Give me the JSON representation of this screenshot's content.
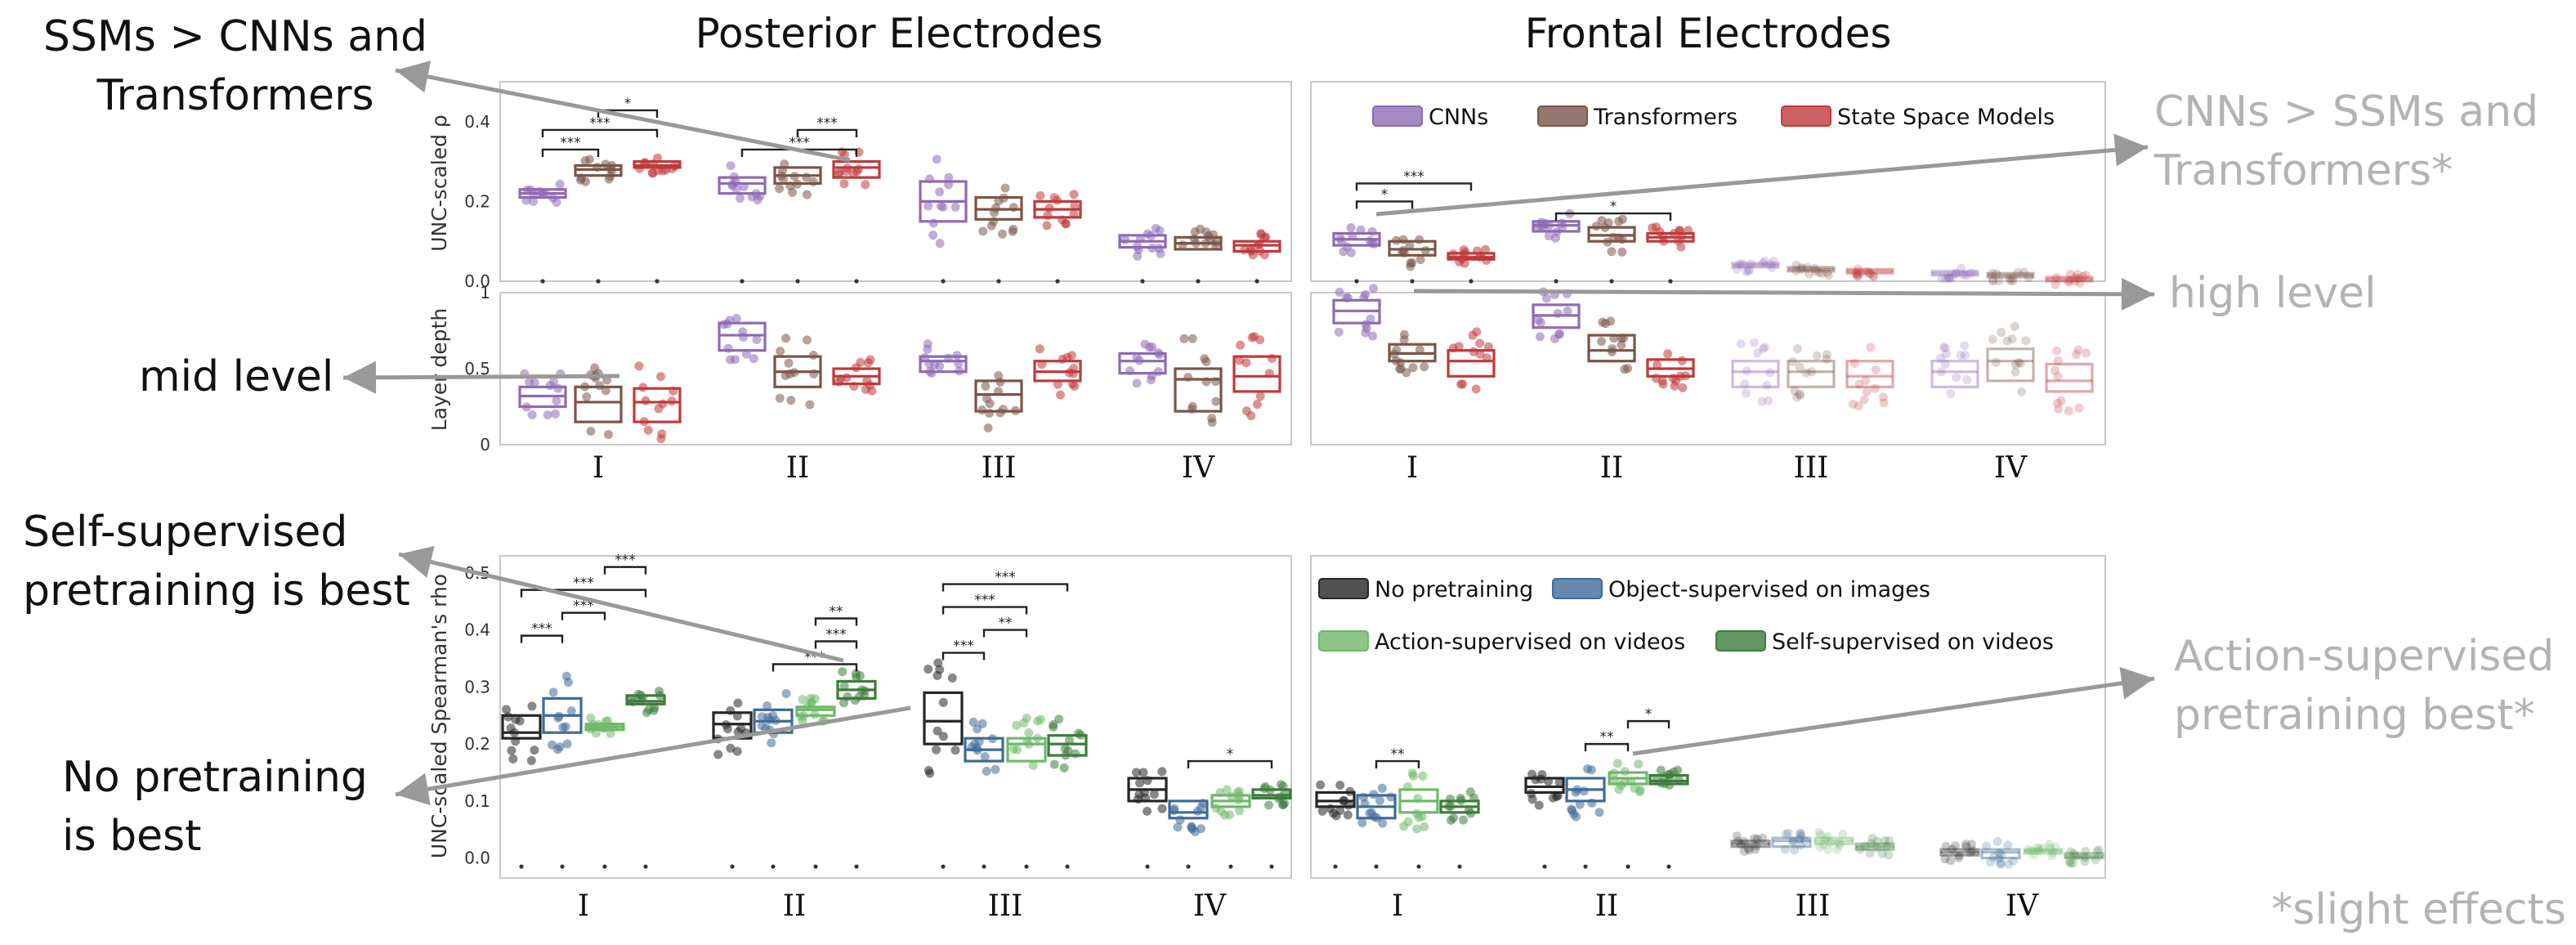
{
  "chart_data": [
    {
      "type": "box",
      "panel": "architecture",
      "titles": {
        "posterior": "Posterior Electrodes",
        "frontal": "Frontal Electrodes"
      },
      "ylabel_top": "UNC-scaled ρ",
      "ylabel_bottom": "Layer depth",
      "categories": [
        "I",
        "II",
        "III",
        "IV"
      ],
      "yticks_top": [
        "0.0",
        "0.2",
        "0.4"
      ],
      "ylim_top": [
        0,
        0.5
      ],
      "yticks_bottom": [
        "0",
        "0.5",
        "1"
      ],
      "ylim_bottom": [
        0,
        1
      ],
      "legend": [
        "CNNs",
        "Transformers",
        "State Space Models"
      ],
      "colors": [
        "#8e6ab5",
        "#7a5548",
        "#c0393b"
      ],
      "series": [
        {
          "name": "CNNs",
          "posterior_rho": [
            [
              0.21,
              0.22,
              0.23
            ],
            [
              0.22,
              0.245,
              0.26
            ],
            [
              0.15,
              0.2,
              0.25
            ],
            [
              0.085,
              0.1,
              0.115
            ]
          ],
          "frontal_rho": [
            [
              0.09,
              0.105,
              0.12
            ],
            [
              0.125,
              0.14,
              0.15
            ],
            [
              0.035,
              0.04,
              0.045
            ],
            [
              0.015,
              0.02,
              0.025
            ]
          ],
          "posterior_depth": [
            [
              0.25,
              0.32,
              0.38
            ],
            [
              0.62,
              0.72,
              0.8
            ],
            [
              0.48,
              0.55,
              0.58
            ],
            [
              0.47,
              0.55,
              0.6
            ]
          ],
          "frontal_depth": [
            [
              0.8,
              0.88,
              0.95
            ],
            [
              0.77,
              0.85,
              0.92
            ],
            [
              0.38,
              0.48,
              0.55
            ],
            [
              0.38,
              0.48,
              0.55
            ]
          ]
        },
        {
          "name": "Transformers",
          "posterior_rho": [
            [
              0.265,
              0.28,
              0.29
            ],
            [
              0.245,
              0.265,
              0.285
            ],
            [
              0.155,
              0.18,
              0.21
            ],
            [
              0.08,
              0.095,
              0.11
            ]
          ],
          "frontal_rho": [
            [
              0.065,
              0.08,
              0.1
            ],
            [
              0.1,
              0.115,
              0.135
            ],
            [
              0.025,
              0.03,
              0.035
            ],
            [
              0.01,
              0.015,
              0.02
            ]
          ],
          "posterior_depth": [
            [
              0.15,
              0.28,
              0.38
            ],
            [
              0.38,
              0.48,
              0.58
            ],
            [
              0.22,
              0.33,
              0.42
            ],
            [
              0.22,
              0.43,
              0.5
            ]
          ],
          "frontal_depth": [
            [
              0.55,
              0.6,
              0.66
            ],
            [
              0.55,
              0.62,
              0.72
            ],
            [
              0.38,
              0.48,
              0.55
            ],
            [
              0.42,
              0.55,
              0.63
            ]
          ]
        },
        {
          "name": "State Space Models",
          "posterior_rho": [
            [
              0.285,
              0.29,
              0.3
            ],
            [
              0.26,
              0.285,
              0.3
            ],
            [
              0.16,
              0.18,
              0.2
            ],
            [
              0.075,
              0.09,
              0.1
            ]
          ],
          "frontal_rho": [
            [
              0.055,
              0.06,
              0.07
            ],
            [
              0.1,
              0.11,
              0.12
            ],
            [
              0.02,
              0.025,
              0.03
            ],
            [
              0.0,
              0.005,
              0.01
            ]
          ],
          "posterior_depth": [
            [
              0.15,
              0.28,
              0.37
            ],
            [
              0.4,
              0.45,
              0.5
            ],
            [
              0.42,
              0.48,
              0.55
            ],
            [
              0.35,
              0.45,
              0.58
            ]
          ],
          "frontal_depth": [
            [
              0.45,
              0.55,
              0.62
            ],
            [
              0.45,
              0.5,
              0.56
            ],
            [
              0.38,
              0.45,
              0.55
            ],
            [
              0.35,
              0.42,
              0.53
            ]
          ]
        }
      ],
      "significance_posterior": [
        {
          "region": "I",
          "pairs": [
            [
              "CNNs",
              "Transformers",
              "***"
            ],
            [
              "CNNs",
              "State Space Models",
              "***"
            ],
            [
              "Transformers",
              "State Space Models",
              "*"
            ]
          ]
        },
        {
          "region": "II",
          "pairs": [
            [
              "CNNs",
              "State Space Models",
              "***"
            ],
            [
              "Transformers",
              "State Space Models",
              "***"
            ]
          ]
        }
      ],
      "significance_frontal": [
        {
          "region": "I",
          "pairs": [
            [
              "CNNs",
              "Transformers",
              "*"
            ],
            [
              "CNNs",
              "State Space Models",
              "***"
            ]
          ]
        },
        {
          "region": "II",
          "pairs": [
            [
              "CNNs",
              "State Space Models",
              "*"
            ]
          ]
        }
      ]
    },
    {
      "type": "box",
      "panel": "pretraining",
      "ylabel": "UNC-scaled Spearman's rho",
      "categories": [
        "I",
        "II",
        "III",
        "IV"
      ],
      "yticks": [
        "0.0",
        "0.1",
        "0.2",
        "0.3",
        "0.4",
        "0.5"
      ],
      "ylim": [
        0,
        0.5
      ],
      "legend": [
        "No pretraining",
        "Object-supervised on images",
        "Action-supervised on videos",
        "Self-supervised on videos"
      ],
      "colors": [
        "#262626",
        "#3f6a97",
        "#6fb86a",
        "#3d7c3d"
      ],
      "series": [
        {
          "name": "No pretraining",
          "posterior": [
            [
              0.21,
              0.22,
              0.25
            ],
            [
              0.21,
              0.235,
              0.255
            ],
            [
              0.2,
              0.24,
              0.29
            ],
            [
              0.1,
              0.12,
              0.14
            ]
          ],
          "frontal": [
            [
              0.09,
              0.1,
              0.115
            ],
            [
              0.115,
              0.125,
              0.14
            ],
            [
              0.02,
              0.025,
              0.03
            ],
            [
              0.005,
              0.01,
              0.015
            ]
          ]
        },
        {
          "name": "Object-supervised on images",
          "posterior": [
            [
              0.22,
              0.25,
              0.28
            ],
            [
              0.22,
              0.24,
              0.26
            ],
            [
              0.17,
              0.19,
              0.21
            ],
            [
              0.07,
              0.08,
              0.1
            ]
          ],
          "frontal": [
            [
              0.07,
              0.09,
              0.11
            ],
            [
              0.1,
              0.12,
              0.14
            ],
            [
              0.02,
              0.03,
              0.035
            ],
            [
              0.0,
              0.01,
              0.015
            ]
          ]
        },
        {
          "name": "Action-supervised on videos",
          "posterior": [
            [
              0.225,
              0.23,
              0.235
            ],
            [
              0.25,
              0.26,
              0.265
            ],
            [
              0.17,
              0.2,
              0.21
            ],
            [
              0.09,
              0.1,
              0.11
            ]
          ],
          "frontal": [
            [
              0.08,
              0.1,
              0.12
            ],
            [
              0.13,
              0.14,
              0.15
            ],
            [
              0.025,
              0.03,
              0.035
            ],
            [
              0.008,
              0.012,
              0.015
            ]
          ]
        },
        {
          "name": "Self-supervised on videos",
          "posterior": [
            [
              0.27,
              0.275,
              0.285
            ],
            [
              0.28,
              0.295,
              0.31
            ],
            [
              0.18,
              0.2,
              0.215
            ],
            [
              0.105,
              0.11,
              0.12
            ]
          ],
          "frontal": [
            [
              0.08,
              0.09,
              0.1
            ],
            [
              0.13,
              0.135,
              0.145
            ],
            [
              0.015,
              0.02,
              0.025
            ],
            [
              0.0,
              0.003,
              0.008
            ]
          ]
        }
      ],
      "significance_posterior": [
        {
          "region": "I",
          "pairs": [
            [
              "No pretraining",
              "Object-supervised on images",
              "***"
            ],
            [
              "Object-supervised on images",
              "Action-supervised on videos",
              "***"
            ],
            [
              "No pretraining",
              "Self-supervised on videos",
              "***"
            ],
            [
              "Action-supervised on videos",
              "Self-supervised on videos",
              "***"
            ]
          ]
        },
        {
          "region": "II",
          "pairs": [
            [
              "Object-supervised on images",
              "Self-supervised on videos",
              "***"
            ],
            [
              "Action-supervised on videos",
              "Self-supervised on videos",
              "***"
            ],
            [
              "Action-supervised on videos",
              "Self-supervised on videos",
              "**"
            ]
          ]
        },
        {
          "region": "III",
          "pairs": [
            [
              "No pretraining",
              "Object-supervised on images",
              "***"
            ],
            [
              "Object-supervised on images",
              "Action-supervised on videos",
              "**"
            ],
            [
              "No pretraining",
              "Action-supervised on videos",
              "***"
            ],
            [
              "No pretraining",
              "Self-supervised on videos",
              "***"
            ]
          ]
        },
        {
          "region": "IV",
          "pairs": [
            [
              "Object-supervised on images",
              "Self-supervised on videos",
              "*"
            ]
          ]
        }
      ],
      "significance_frontal": [
        {
          "region": "I",
          "pairs": [
            [
              "Object-supervised on images",
              "Action-supervised on videos",
              "**"
            ]
          ]
        },
        {
          "region": "II",
          "pairs": [
            [
              "Object-supervised on images",
              "Action-supervised on videos",
              "**"
            ],
            [
              "Action-supervised on videos",
              "Self-supervised on videos",
              "*"
            ]
          ]
        }
      ]
    }
  ],
  "annotations": {
    "ssm_best": "SSMs > CNNs and\nTransformers",
    "cnn_frontal": "CNNs > SSMs and\nTransformers*",
    "mid_level": "mid level",
    "high_level": "high level",
    "self_supervised": "Self-supervised\npretraining is best",
    "no_pretraining": "No pretraining\nis best",
    "action_supervised": "Action-supervised\npretraining best*",
    "footnote": "*slight effects"
  }
}
